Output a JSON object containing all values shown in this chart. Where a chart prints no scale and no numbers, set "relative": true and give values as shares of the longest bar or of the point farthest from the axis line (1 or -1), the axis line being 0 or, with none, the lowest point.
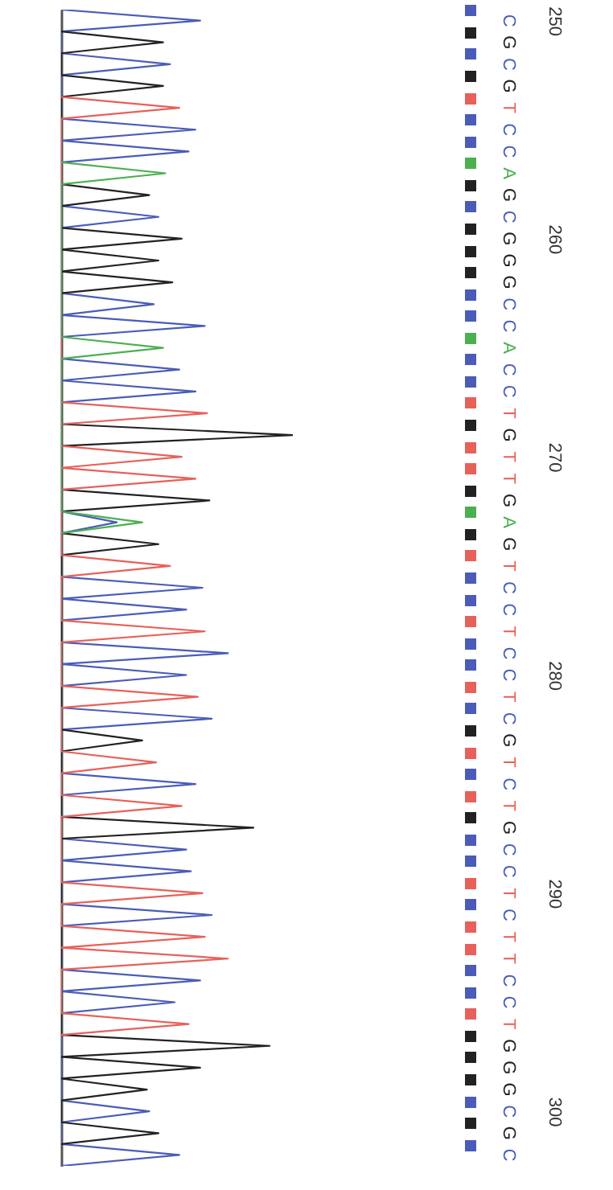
{
  "chart_data": {
    "type": "line",
    "orientation": "horizontal",
    "relative": true,
    "ylim": [
      302.5,
      249.5
    ],
    "yticks": [
      250,
      260,
      270,
      280,
      290,
      300
    ],
    "series": [
      {
        "color": "#4a5cb8",
        "x": [
          249.5,
          250,
          250.5,
          251.5,
          252,
          252.5,
          254.5,
          255,
          255.5,
          256,
          256.5,
          258.5,
          259,
          259.5,
          262.5,
          263,
          263.5,
          264,
          264.5,
          265.5,
          266,
          266.5,
          267,
          267.5,
          272.5,
          273,
          273.5,
          275.5,
          276,
          276.5,
          277,
          277.5,
          278.5,
          279,
          279.5,
          280,
          280.5,
          281.5,
          282,
          282.5,
          284.5,
          285,
          285.5,
          287.5,
          288,
          288.5,
          289,
          289.5,
          290.5,
          291,
          291.5,
          293.5,
          294,
          294.5,
          295,
          295.5,
          299.5,
          300,
          300.5,
          301.5,
          302,
          302.5
        ],
        "values": [
          0,
          0.6,
          0,
          0,
          0.47,
          0,
          0,
          0.58,
          0,
          0.55,
          0,
          0,
          0.42,
          0,
          0,
          0.4,
          0,
          0.62,
          0,
          0,
          0.51,
          0,
          0.58,
          0,
          0,
          0.24,
          0,
          0,
          0.61,
          0,
          0.54,
          0,
          0,
          0.72,
          0,
          0.54,
          0,
          0,
          0.65,
          0,
          0,
          0.58,
          0,
          0,
          0.54,
          0,
          0.56,
          0,
          0,
          0.65,
          0,
          0,
          0.6,
          0,
          0.49,
          0,
          0,
          0.38,
          0,
          0,
          0.51,
          0
        ]
      },
      {
        "color": "#222222",
        "x": [
          250.5,
          251,
          251.5,
          252.5,
          253,
          253.5,
          257.5,
          258,
          258.5,
          259.5,
          260,
          260.5,
          261,
          261.5,
          262,
          262.5,
          268.5,
          269,
          269.5,
          271.5,
          272,
          272.5,
          273.5,
          274,
          274.5,
          282.5,
          283,
          283.5,
          286.5,
          287,
          287.5,
          296.5,
          297,
          297.5,
          298,
          298.5,
          299,
          299.5,
          300.5,
          301,
          301.5
        ],
        "values": [
          0,
          0.44,
          0,
          0,
          0.44,
          0,
          0,
          0.38,
          0,
          0,
          0.52,
          0,
          0.42,
          0,
          0.48,
          0,
          0,
          1,
          0,
          0,
          0.64,
          0,
          0,
          0.42,
          0,
          0,
          0.35,
          0,
          0,
          0.83,
          0,
          0,
          0.9,
          0,
          0.6,
          0,
          0.37,
          0,
          0,
          0.42,
          0
        ]
      },
      {
        "color": "#e8605a",
        "x": [
          253.5,
          254,
          254.5,
          267.5,
          268,
          268.5,
          269.5,
          270,
          270.5,
          271,
          271.5,
          274.5,
          275,
          275.5,
          277.5,
          278,
          278.5,
          280.5,
          281,
          281.5,
          283.5,
          284,
          284.5,
          285.5,
          286,
          286.5,
          289.5,
          290,
          290.5,
          291.5,
          292,
          292.5,
          293,
          293.5,
          295.5,
          296,
          296.5
        ],
        "values": [
          0,
          0.51,
          0,
          0,
          0.63,
          0,
          0,
          0.52,
          0,
          0.58,
          0,
          0,
          0.47,
          0,
          0,
          0.62,
          0,
          0,
          0.59,
          0,
          0,
          0.41,
          0,
          0,
          0.52,
          0,
          0,
          0.61,
          0,
          0,
          0.62,
          0,
          0.72,
          0,
          0,
          0.55,
          0
        ]
      },
      {
        "color": "#4caf50",
        "x": [
          256.5,
          257,
          257.5,
          264.5,
          265,
          265.5,
          272.5,
          273,
          273.5
        ],
        "values": [
          0,
          0.45,
          0,
          0,
          0.44,
          0,
          0,
          0.35,
          0
        ]
      }
    ],
    "annotations": [
      "C",
      "G",
      "C",
      "G",
      "T",
      "C",
      "C",
      "A",
      "G",
      "C",
      "G",
      "G",
      "G",
      "C",
      "C",
      "A",
      "C",
      "C",
      "T",
      "G",
      "T",
      "T",
      "G",
      "A",
      "G",
      "T",
      "C",
      "C",
      "T",
      "C",
      "C",
      "T",
      "C",
      "G",
      "T",
      "C",
      "T",
      "G",
      "C",
      "C",
      "T",
      "C",
      "T",
      "T",
      "C",
      "C",
      "T",
      "G",
      "G",
      "G",
      "C",
      "G",
      "C"
    ]
  }
}
